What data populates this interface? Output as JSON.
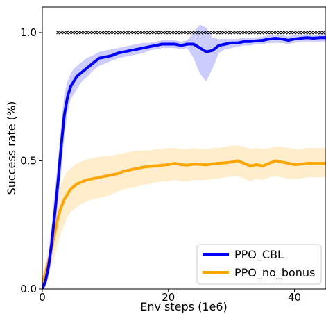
{
  "chart_data": {
    "type": "line",
    "title": "",
    "xlabel": "Env steps (1e6)",
    "ylabel": "Success rate (%)",
    "xlim": [
      0,
      45
    ],
    "ylim": [
      0,
      1.1
    ],
    "x_ticks": [
      0,
      20,
      40
    ],
    "x_tick_labels": [
      "0",
      "20",
      "40"
    ],
    "y_ticks": [
      0.0,
      0.5,
      1.0
    ],
    "y_tick_labels": [
      "0.0",
      "0.5",
      "1.0"
    ],
    "grid": false,
    "legend_position": "bottom-right",
    "reference_marker_line": {
      "y": 1.0,
      "x_start": 2.5,
      "x_end": 45,
      "marker": "x",
      "color": "#000000"
    },
    "x": [
      0,
      0.5,
      1,
      1.5,
      2,
      2.5,
      3,
      3.5,
      4,
      4.5,
      5,
      5.5,
      6,
      6.5,
      7,
      8,
      9,
      10,
      11,
      12,
      13,
      14,
      15,
      16,
      17,
      18,
      19,
      20,
      21,
      22,
      23,
      24,
      25,
      26,
      27,
      28,
      29,
      30,
      31,
      32,
      33,
      34,
      35,
      36,
      37,
      38,
      39,
      40,
      41,
      42,
      43,
      44,
      45
    ],
    "series": [
      {
        "name": "PPO_CBL",
        "color": "#0000ff",
        "values": [
          0.0,
          0.03,
          0.09,
          0.18,
          0.3,
          0.42,
          0.56,
          0.68,
          0.75,
          0.79,
          0.81,
          0.83,
          0.84,
          0.85,
          0.86,
          0.88,
          0.9,
          0.905,
          0.91,
          0.92,
          0.925,
          0.93,
          0.935,
          0.94,
          0.945,
          0.95,
          0.955,
          0.955,
          0.955,
          0.95,
          0.955,
          0.955,
          0.94,
          0.925,
          0.93,
          0.95,
          0.955,
          0.96,
          0.96,
          0.965,
          0.965,
          0.968,
          0.97,
          0.975,
          0.978,
          0.975,
          0.97,
          0.975,
          0.978,
          0.98,
          0.978,
          0.98,
          0.98
        ],
        "lower": [
          0.0,
          0.01,
          0.05,
          0.12,
          0.22,
          0.34,
          0.46,
          0.6,
          0.69,
          0.74,
          0.76,
          0.78,
          0.8,
          0.815,
          0.825,
          0.85,
          0.87,
          0.88,
          0.89,
          0.9,
          0.905,
          0.91,
          0.915,
          0.92,
          0.93,
          0.935,
          0.94,
          0.94,
          0.94,
          0.935,
          0.94,
          0.9,
          0.84,
          0.81,
          0.86,
          0.92,
          0.935,
          0.94,
          0.945,
          0.95,
          0.95,
          0.955,
          0.955,
          0.96,
          0.96,
          0.96,
          0.955,
          0.96,
          0.965,
          0.965,
          0.965,
          0.965,
          0.965
        ],
        "upper": [
          0.02,
          0.06,
          0.14,
          0.25,
          0.38,
          0.5,
          0.64,
          0.76,
          0.81,
          0.84,
          0.86,
          0.87,
          0.88,
          0.89,
          0.9,
          0.91,
          0.925,
          0.93,
          0.935,
          0.94,
          0.945,
          0.95,
          0.955,
          0.96,
          0.96,
          0.965,
          0.97,
          0.97,
          0.97,
          0.965,
          0.97,
          1.0,
          1.03,
          1.02,
          0.98,
          0.975,
          0.975,
          0.975,
          0.975,
          0.98,
          0.98,
          0.98,
          0.985,
          0.99,
          0.99,
          0.99,
          0.985,
          0.99,
          0.99,
          0.995,
          0.99,
          0.995,
          0.995
        ]
      },
      {
        "name": "PPO_no_bonus",
        "color": "#ffa500",
        "values": [
          0.02,
          0.06,
          0.11,
          0.16,
          0.22,
          0.28,
          0.32,
          0.35,
          0.37,
          0.39,
          0.4,
          0.41,
          0.415,
          0.42,
          0.425,
          0.43,
          0.435,
          0.44,
          0.445,
          0.45,
          0.46,
          0.465,
          0.47,
          0.475,
          0.478,
          0.48,
          0.483,
          0.485,
          0.49,
          0.485,
          0.483,
          0.487,
          0.486,
          0.484,
          0.488,
          0.49,
          0.492,
          0.495,
          0.5,
          0.49,
          0.48,
          0.485,
          0.48,
          0.49,
          0.5,
          0.495,
          0.49,
          0.485,
          0.487,
          0.49,
          0.49,
          0.49,
          0.49
        ],
        "lower": [
          0.0,
          0.03,
          0.06,
          0.09,
          0.13,
          0.18,
          0.22,
          0.25,
          0.28,
          0.3,
          0.31,
          0.32,
          0.33,
          0.335,
          0.34,
          0.35,
          0.355,
          0.36,
          0.37,
          0.38,
          0.39,
          0.395,
          0.4,
          0.405,
          0.41,
          0.415,
          0.42,
          0.42,
          0.425,
          0.42,
          0.42,
          0.425,
          0.425,
          0.425,
          0.43,
          0.43,
          0.435,
          0.44,
          0.44,
          0.43,
          0.42,
          0.43,
          0.425,
          0.435,
          0.44,
          0.435,
          0.43,
          0.43,
          0.43,
          0.435,
          0.435,
          0.435,
          0.435
        ],
        "upper": [
          0.05,
          0.1,
          0.17,
          0.24,
          0.31,
          0.37,
          0.41,
          0.44,
          0.46,
          0.47,
          0.48,
          0.49,
          0.495,
          0.5,
          0.505,
          0.51,
          0.515,
          0.52,
          0.52,
          0.525,
          0.53,
          0.535,
          0.54,
          0.54,
          0.54,
          0.545,
          0.545,
          0.55,
          0.55,
          0.545,
          0.545,
          0.55,
          0.545,
          0.545,
          0.55,
          0.55,
          0.555,
          0.56,
          0.56,
          0.555,
          0.545,
          0.55,
          0.545,
          0.55,
          0.555,
          0.555,
          0.55,
          0.545,
          0.545,
          0.55,
          0.55,
          0.55,
          0.55
        ]
      }
    ]
  }
}
